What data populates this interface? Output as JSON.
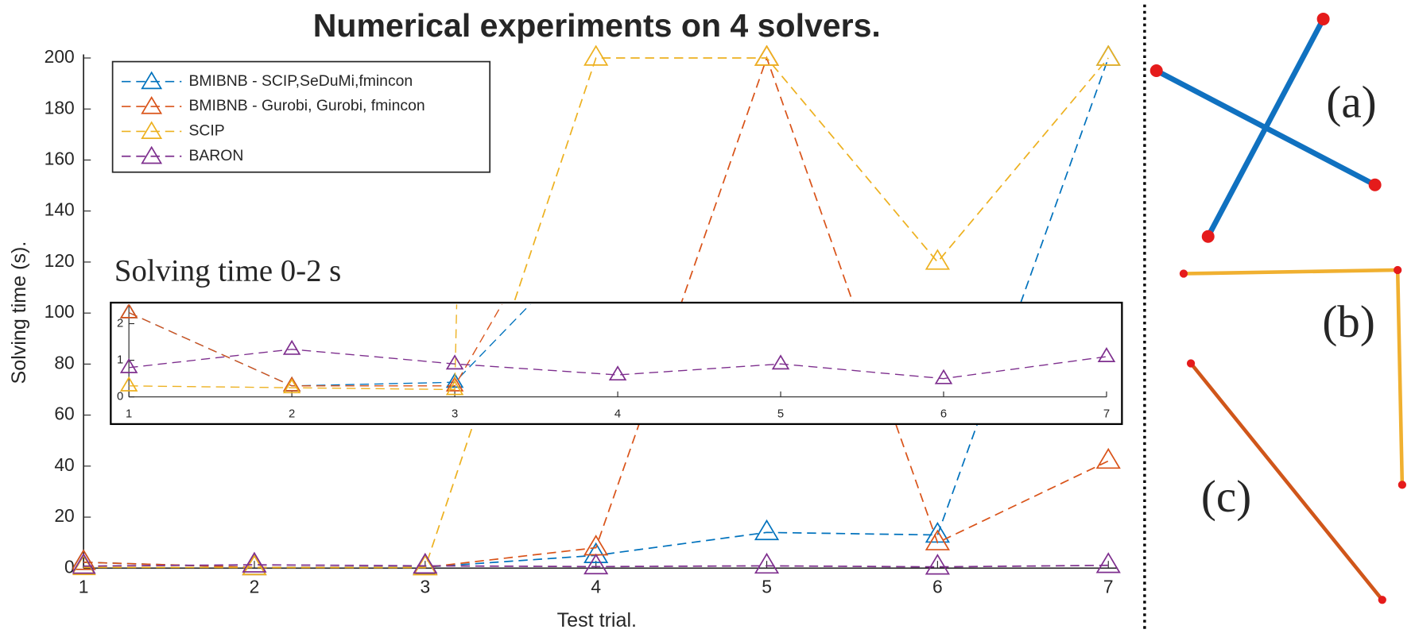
{
  "chart_data": {
    "type": "line",
    "title": "Numerical experiments on 4 solvers.",
    "x_label": "Test trial.",
    "y_label": "Solving time (s).",
    "x": [
      1,
      2,
      3,
      4,
      5,
      6,
      7
    ],
    "xlim": [
      1,
      7
    ],
    "xticks": [
      1,
      2,
      3,
      4,
      5,
      6,
      7
    ],
    "ylim": [
      0,
      200
    ],
    "yticks": [
      0,
      20,
      40,
      60,
      80,
      100,
      120,
      140,
      160,
      180,
      200
    ],
    "legend": "upper left",
    "marker": "triangle",
    "linestyle": "dashed",
    "series": [
      {
        "name": "BMIBNB - SCIP,SeDuMi,fmincon",
        "color": "#0072bd",
        "values": [
          2.3,
          0.3,
          0.4,
          5,
          14,
          13,
          200
        ]
      },
      {
        "name": "BMIBNB - Gurobi, Gurobi, fmincon",
        "color": "#d95319",
        "values": [
          2.3,
          0.3,
          0.3,
          8,
          200,
          10,
          42
        ]
      },
      {
        "name": "SCIP",
        "color": "#edb120",
        "values": [
          0.3,
          0.25,
          0.2,
          200,
          200,
          120,
          200
        ]
      },
      {
        "name": "BARON",
        "color": "#7e2f8e",
        "values": [
          0.8,
          1.3,
          0.9,
          0.6,
          0.9,
          0.5,
          1.1
        ]
      }
    ],
    "inset": {
      "title": "Solving time 0-2 s",
      "ylim": [
        0,
        2.5
      ],
      "yticks": [
        0,
        1,
        2
      ],
      "xlim": [
        1,
        7
      ],
      "xticks": [
        1,
        2,
        3,
        4,
        5,
        6,
        7
      ]
    }
  },
  "panels": [
    "(a)",
    "(b)",
    "(c)"
  ]
}
